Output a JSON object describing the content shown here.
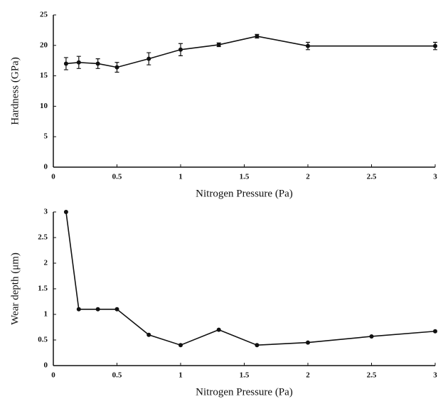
{
  "chart_data": [
    {
      "type": "line",
      "x_label": "Nitrogen Pressure (Pa)",
      "y_label": "Hardness (GPa)",
      "x": [
        0.1,
        0.2,
        0.35,
        0.5,
        0.75,
        1.0,
        1.3,
        1.6,
        2.0,
        3.0
      ],
      "values": [
        17,
        17.2,
        17,
        16.4,
        17.8,
        19.3,
        20.1,
        21.5,
        19.9,
        19.9
      ],
      "errors": [
        1,
        1,
        0.8,
        0.8,
        1,
        1,
        0.3,
        0.3,
        0.6,
        0.6
      ],
      "color": "#111111",
      "xlim": [
        0,
        3
      ],
      "xticks": [
        0,
        0.5,
        1,
        1.5,
        2,
        2.5,
        3
      ],
      "ylim": [
        0,
        25
      ],
      "yticks": [
        0,
        5,
        10,
        15,
        20,
        25
      ]
    },
    {
      "type": "line",
      "x_label": "Nitrogen Pressure (Pa)",
      "y_label": "Wear depth (μm)",
      "x": [
        0.1,
        0.2,
        0.35,
        0.5,
        0.75,
        1.0,
        1.3,
        1.6,
        2.0,
        2.5,
        3.0
      ],
      "values": [
        3.0,
        1.1,
        1.1,
        1.1,
        0.6,
        0.4,
        0.7,
        0.4,
        0.45,
        0.57,
        0.67
      ],
      "color": "#111111",
      "xlim": [
        0,
        3
      ],
      "xticks": [
        0,
        0.5,
        1,
        1.5,
        2,
        2.5,
        3
      ],
      "ylim": [
        0,
        3
      ],
      "yticks": [
        0,
        0.5,
        1,
        1.5,
        2,
        2.5,
        3
      ]
    }
  ]
}
